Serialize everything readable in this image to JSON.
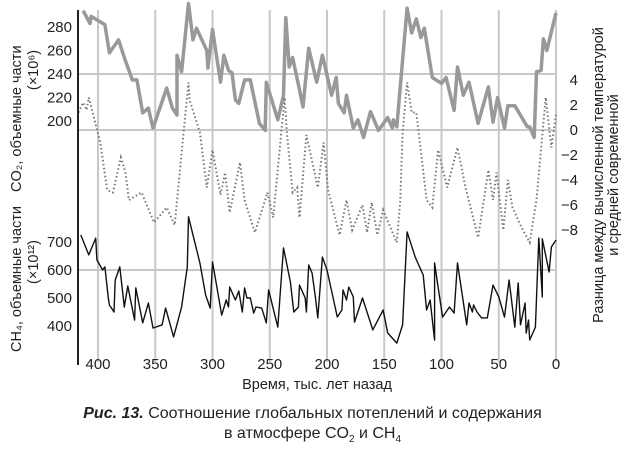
{
  "chart_data": {
    "type": "line",
    "xlabel": "Время, тыс. лет назад",
    "x_ticks": [
      400,
      350,
      300,
      250,
      200,
      150,
      100,
      50,
      0
    ],
    "x_range": [
      417,
      0
    ],
    "x_reversed": true,
    "grid": true,
    "colors": {
      "co2": "#999999",
      "temperature": "#777777",
      "ch4": "#111111",
      "grid": "#c8c8c8",
      "axis": "#222222"
    },
    "axes": {
      "co2": {
        "label": "CO₂, объемные части",
        "unit": "(×10⁶)",
        "ticks": [
          200,
          220,
          240,
          260,
          280
        ],
        "side": "left-top"
      },
      "ch4": {
        "label": "CH₄, объемные части",
        "unit": "(×10¹²)",
        "ticks": [
          400,
          500,
          600,
          700
        ],
        "side": "left-bottom"
      },
      "temperature": {
        "label_line1": "Разница между вычисленной температурой",
        "label_line2": "и средней современной",
        "ticks": [
          4,
          2,
          0,
          -2,
          -4,
          -6,
          -8
        ],
        "side": "right"
      }
    },
    "series": [
      {
        "key": "co2",
        "style": "thick solid gray",
        "points": [
          [
            413,
            294
          ],
          [
            407,
            283
          ],
          [
            406,
            289
          ],
          [
            394,
            282
          ],
          [
            390,
            258
          ],
          [
            382,
            269
          ],
          [
            377,
            254
          ],
          [
            370,
            235
          ],
          [
            366,
            235
          ],
          [
            361,
            207
          ],
          [
            356,
            211
          ],
          [
            352,
            194
          ],
          [
            340,
            228
          ],
          [
            335,
            211
          ],
          [
            331,
            205
          ],
          [
            331,
            256
          ],
          [
            327,
            242
          ],
          [
            321,
            300
          ],
          [
            317,
            269
          ],
          [
            314,
            279
          ],
          [
            305,
            260
          ],
          [
            304,
            245
          ],
          [
            300,
            278
          ],
          [
            293,
            233
          ],
          [
            290,
            256
          ],
          [
            286,
            243
          ],
          [
            283,
            241
          ],
          [
            280,
            218
          ],
          [
            277,
            215
          ],
          [
            272,
            235
          ],
          [
            267,
            235
          ],
          [
            259,
            198
          ],
          [
            254,
            192
          ],
          [
            253,
            233
          ],
          [
            243,
            201
          ],
          [
            238,
            222
          ],
          [
            236,
            288
          ],
          [
            233,
            246
          ],
          [
            230,
            254
          ],
          [
            225,
            231
          ],
          [
            221,
            212
          ],
          [
            216,
            262
          ],
          [
            209,
            233
          ],
          [
            204,
            256
          ],
          [
            196,
            222
          ],
          [
            192,
            237
          ],
          [
            190,
            215
          ],
          [
            185,
            207
          ],
          [
            183,
            222
          ],
          [
            177,
            194
          ],
          [
            173,
            201
          ],
          [
            168,
            186
          ],
          [
            162,
            208
          ],
          [
            155,
            192
          ],
          [
            147,
            203
          ],
          [
            143,
            194
          ],
          [
            142,
            201
          ],
          [
            139,
            195
          ],
          [
            130,
            296
          ],
          [
            126,
            275
          ],
          [
            122,
            287
          ],
          [
            118,
            271
          ],
          [
            115,
            279
          ],
          [
            108,
            237
          ],
          [
            100,
            232
          ],
          [
            96,
            237
          ],
          [
            89,
            209
          ],
          [
            86,
            246
          ],
          [
            81,
            222
          ],
          [
            76,
            233
          ],
          [
            68,
            198
          ],
          [
            59,
            229
          ],
          [
            55,
            199
          ],
          [
            51,
            220
          ],
          [
            45,
            194
          ],
          [
            42,
            213
          ],
          [
            36,
            213
          ],
          [
            25,
            195
          ],
          [
            23,
            195
          ],
          [
            19,
            186
          ],
          [
            17,
            242
          ],
          [
            13,
            243
          ],
          [
            11,
            270
          ],
          [
            8,
            260
          ],
          [
            0,
            292
          ]
        ]
      },
      {
        "key": "temperature",
        "style": "dotted gray",
        "points": [
          [
            417,
            1.4
          ],
          [
            413,
            2.2
          ],
          [
            410,
            1.6
          ],
          [
            408,
            2.6
          ],
          [
            398,
            -1
          ],
          [
            392,
            -4.8
          ],
          [
            387,
            -5
          ],
          [
            380,
            -2.2
          ],
          [
            376,
            -3.4
          ],
          [
            373,
            -5.6
          ],
          [
            362,
            -5
          ],
          [
            351,
            -7.4
          ],
          [
            340,
            -6.2
          ],
          [
            333,
            -7.6
          ],
          [
            327,
            -1.8
          ],
          [
            321,
            3.8
          ],
          [
            320,
            2.4
          ],
          [
            311,
            -0.2
          ],
          [
            305,
            -4.6
          ],
          [
            300,
            -1.6
          ],
          [
            293,
            -5.2
          ],
          [
            289,
            -3.4
          ],
          [
            285,
            -6.6
          ],
          [
            276,
            -2.6
          ],
          [
            272,
            -5.6
          ],
          [
            263,
            -8.2
          ],
          [
            252,
            -5
          ],
          [
            247,
            -7
          ],
          [
            237,
            2.6
          ],
          [
            235,
            -0.2
          ],
          [
            230,
            -5
          ],
          [
            226,
            -4.6
          ],
          [
            224,
            -7
          ],
          [
            218,
            -0.4
          ],
          [
            208,
            -4.6
          ],
          [
            203,
            -1
          ],
          [
            199,
            -4.8
          ],
          [
            189,
            -8.4
          ],
          [
            183,
            -5.6
          ],
          [
            178,
            -8
          ],
          [
            169,
            -6
          ],
          [
            165,
            -8.2
          ],
          [
            161,
            -5.8
          ],
          [
            156,
            -8.4
          ],
          [
            151,
            -6.4
          ],
          [
            139,
            -9
          ],
          [
            136,
            -5.6
          ],
          [
            134,
            -0.2
          ],
          [
            130,
            3.8
          ],
          [
            126,
            1.4
          ],
          [
            122,
            1.4
          ],
          [
            113,
            -5.6
          ],
          [
            108,
            -6.2
          ],
          [
            103,
            -1.6
          ],
          [
            95,
            -4.6
          ],
          [
            86,
            -1.4
          ],
          [
            79,
            -4.6
          ],
          [
            68,
            -8.6
          ],
          [
            59,
            -3.2
          ],
          [
            55,
            -5.6
          ],
          [
            52,
            -3.4
          ],
          [
            46,
            -8
          ],
          [
            42,
            -4
          ],
          [
            38,
            -6.2
          ],
          [
            30,
            -7.8
          ],
          [
            23,
            -9
          ],
          [
            17,
            -5.6
          ],
          [
            9,
            2.6
          ],
          [
            4,
            -1.4
          ],
          [
            0,
            1.2
          ]
        ]
      },
      {
        "key": "ch4",
        "style": "thin solid black",
        "points": [
          [
            415,
            725
          ],
          [
            408,
            654
          ],
          [
            402,
            714
          ],
          [
            401,
            636
          ],
          [
            396,
            600
          ],
          [
            394,
            611
          ],
          [
            391,
            500
          ],
          [
            390,
            475
          ],
          [
            386,
            450
          ],
          [
            385,
            564
          ],
          [
            381,
            611
          ],
          [
            377,
            468
          ],
          [
            374,
            543
          ],
          [
            368,
            421
          ],
          [
            367,
            536
          ],
          [
            361,
            411
          ],
          [
            356,
            482
          ],
          [
            352,
            393
          ],
          [
            344,
            404
          ],
          [
            341,
            464
          ],
          [
            334,
            361
          ],
          [
            327,
            468
          ],
          [
            322,
            611
          ],
          [
            321,
            790
          ],
          [
            311,
            625
          ],
          [
            306,
            511
          ],
          [
            302,
            464
          ],
          [
            300,
            629
          ],
          [
            292,
            439
          ],
          [
            288,
            493
          ],
          [
            286,
            468
          ],
          [
            285,
            539
          ],
          [
            280,
            493
          ],
          [
            277,
            525
          ],
          [
            274,
            450
          ],
          [
            272,
            536
          ],
          [
            270,
            500
          ],
          [
            267,
            500
          ],
          [
            264,
            446
          ],
          [
            262,
            468
          ],
          [
            257,
            464
          ],
          [
            253,
            411
          ],
          [
            251,
            529
          ],
          [
            243,
            396
          ],
          [
            238,
            679
          ],
          [
            232,
            557
          ],
          [
            229,
            450
          ],
          [
            225,
            468
          ],
          [
            224,
            546
          ],
          [
            219,
            500
          ],
          [
            218,
            450
          ],
          [
            216,
            618
          ],
          [
            213,
            589
          ],
          [
            210,
            500
          ],
          [
            208,
            429
          ],
          [
            204,
            646
          ],
          [
            200,
            600
          ],
          [
            191,
            432
          ],
          [
            187,
            457
          ],
          [
            186,
            529
          ],
          [
            183,
            493
          ],
          [
            181,
            539
          ],
          [
            177,
            504
          ],
          [
            176,
            414
          ],
          [
            169,
            500
          ],
          [
            160,
            386
          ],
          [
            151,
            457
          ],
          [
            147,
            375
          ],
          [
            139,
            339
          ],
          [
            134,
            404
          ],
          [
            130,
            736
          ],
          [
            123,
            646
          ],
          [
            116,
            582
          ],
          [
            113,
            457
          ],
          [
            110,
            493
          ],
          [
            106,
            350
          ],
          [
            106,
            625
          ],
          [
            103,
            539
          ],
          [
            99,
            432
          ],
          [
            93,
            468
          ],
          [
            89,
            446
          ],
          [
            86,
            625
          ],
          [
            78,
            404
          ],
          [
            76,
            482
          ],
          [
            73,
            450
          ],
          [
            72,
            475
          ],
          [
            69,
            450
          ],
          [
            65,
            429
          ],
          [
            60,
            429
          ],
          [
            55,
            546
          ],
          [
            50,
            504
          ],
          [
            45,
            432
          ],
          [
            41,
            564
          ],
          [
            36,
            396
          ],
          [
            33,
            554
          ],
          [
            31,
            404
          ],
          [
            27,
            482
          ],
          [
            26,
            375
          ],
          [
            24,
            421
          ],
          [
            23,
            350
          ],
          [
            18,
            396
          ],
          [
            15,
            714
          ],
          [
            12,
            504
          ],
          [
            12,
            711
          ],
          [
            6,
            593
          ],
          [
            4,
            682
          ],
          [
            0,
            707
          ]
        ]
      }
    ]
  },
  "caption": {
    "fig_label": "Рис. 13.",
    "line1": "Соотношение глобальных потеплений и содержания",
    "line2_prefix": "в атмосфере CO",
    "sub2": "2",
    "mid": " и CH",
    "sub4": "4"
  }
}
